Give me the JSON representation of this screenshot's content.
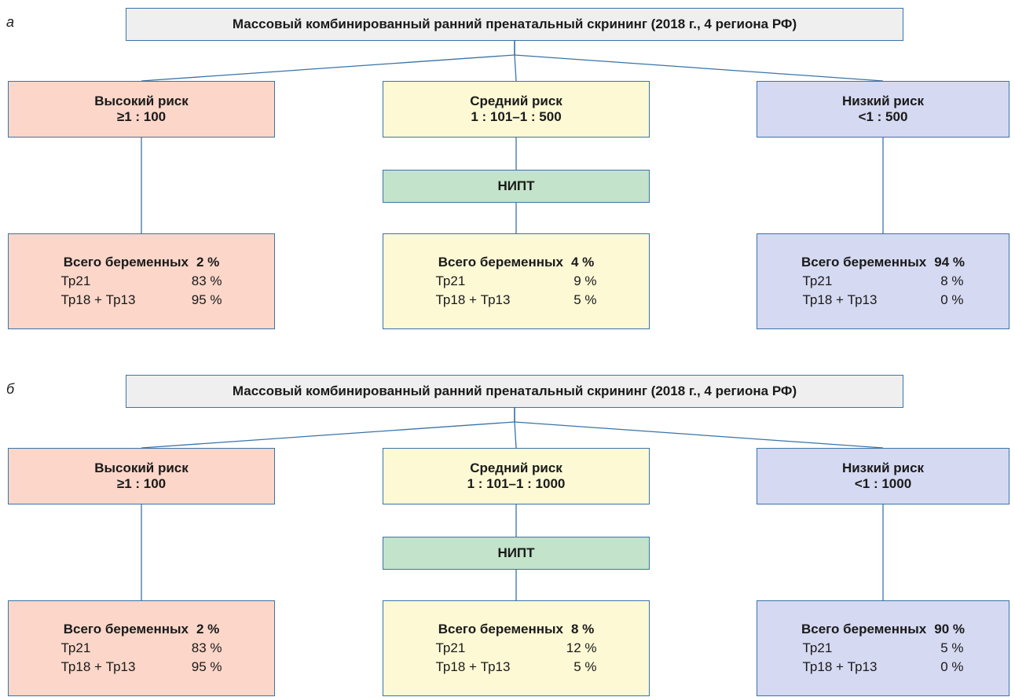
{
  "panels": [
    {
      "label": "а",
      "title": "Массовый комбинированный ранний пренатальный скрининг (2018 г., 4 региона РФ)",
      "risks": [
        {
          "name": "Высокий риск",
          "range": "≥1 : 100"
        },
        {
          "name": "Средний риск",
          "range": "1 : 101–1 : 500"
        },
        {
          "name": "Низкий риск",
          "range": "<1 : 500"
        }
      ],
      "nipt": "НИПТ",
      "results": [
        {
          "total_label": "Всего беременных",
          "total": "2 %",
          "rows": [
            {
              "label": "Тр21",
              "value": "83 %"
            },
            {
              "label": "Тр18 + Тр13",
              "value": "95 %"
            }
          ]
        },
        {
          "total_label": "Всего беременных",
          "total": "4 %",
          "rows": [
            {
              "label": "Тр21",
              "value": "9 %"
            },
            {
              "label": "Тр18 + Тр13",
              "value": "5 %"
            }
          ]
        },
        {
          "total_label": "Всего беременных",
          "total": "94 %",
          "rows": [
            {
              "label": "Тр21",
              "value": "8 %"
            },
            {
              "label": "Тр18 + Тр13",
              "value": "0 %"
            }
          ]
        }
      ]
    },
    {
      "label": "б",
      "title": "Массовый комбинированный ранний пренатальный скрининг (2018 г., 4 региона РФ)",
      "risks": [
        {
          "name": "Высокий риск",
          "range": "≥1 : 100"
        },
        {
          "name": "Средний риск",
          "range": "1 : 101–1 : 1000"
        },
        {
          "name": "Низкий риск",
          "range": "<1 : 1000"
        }
      ],
      "nipt": "НИПТ",
      "results": [
        {
          "total_label": "Всего беременных",
          "total": "2 %",
          "rows": [
            {
              "label": "Тр21",
              "value": "83 %"
            },
            {
              "label": "Тр18 + Тр13",
              "value": "95 %"
            }
          ]
        },
        {
          "total_label": "Всего беременных",
          "total": "8 %",
          "rows": [
            {
              "label": "Тр21",
              "value": "12 %"
            },
            {
              "label": "Тр18 + Тр13",
              "value": "5 %"
            }
          ]
        },
        {
          "total_label": "Всего беременных",
          "total": "90 %",
          "rows": [
            {
              "label": "Тр21",
              "value": "5 %"
            },
            {
              "label": "Тр18 + Тр13",
              "value": "0 %"
            }
          ]
        }
      ]
    }
  ]
}
